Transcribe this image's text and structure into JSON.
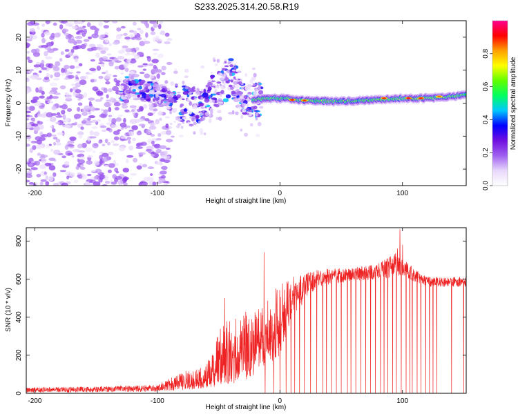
{
  "chart_data": [
    {
      "type": "heatmap",
      "title": "S233.2025.314.20.58.R19",
      "xlabel": "Height of straight line (km)",
      "ylabel": "Frequency (Hz)",
      "xlim": [
        -207,
        152
      ],
      "ylim": [
        -25,
        25
      ],
      "xticks": [
        -200,
        -100,
        0,
        100
      ],
      "yticks": [
        -20,
        -10,
        0,
        10,
        20
      ],
      "colorbar": {
        "label": "Normalized spectral amplitude",
        "range": [
          0,
          1
        ],
        "ticks": [
          0.0,
          0.2,
          0.4,
          0.6,
          0.8
        ],
        "colors": [
          "#ffffff",
          "#e8d8fb",
          "#a060f0",
          "#7010e0",
          "#0000ff",
          "#00c8ff",
          "#00ff60",
          "#60ff00",
          "#ffff00",
          "#ffa000",
          "#ff0000",
          "#ff0090"
        ]
      },
      "noise_region": {
        "x": [
          -207,
          -90
        ],
        "y": [
          -25,
          25
        ]
      },
      "ridge": [
        {
          "x": -125,
          "y": 5
        },
        {
          "x": -110,
          "y": 4
        },
        {
          "x": -100,
          "y": 3
        },
        {
          "x": -90,
          "y": 1
        },
        {
          "x": -80,
          "y": 0
        },
        {
          "x": -70,
          "y": -1
        },
        {
          "x": -60,
          "y": 2
        },
        {
          "x": -50,
          "y": 5
        },
        {
          "x": -40,
          "y": 8
        },
        {
          "x": -30,
          "y": 1
        },
        {
          "x": -20,
          "y": 1
        },
        {
          "x": -10,
          "y": 1.5
        },
        {
          "x": 0,
          "y": 1.5
        },
        {
          "x": 20,
          "y": 0.8
        },
        {
          "x": 50,
          "y": 0.5
        },
        {
          "x": 80,
          "y": 1
        },
        {
          "x": 100,
          "y": 1.5
        },
        {
          "x": 120,
          "y": 1.5
        },
        {
          "x": 152,
          "y": 2.5
        }
      ],
      "hot_spots": [
        {
          "x": 10,
          "y": 1,
          "value": 0.9
        },
        {
          "x": 20,
          "y": 0.8,
          "value": 0.88
        },
        {
          "x": 85,
          "y": 1.5,
          "value": 0.9
        },
        {
          "x": 105,
          "y": 1.5,
          "value": 0.92
        },
        {
          "x": 115,
          "y": 1.5,
          "value": 0.9
        },
        {
          "x": 130,
          "y": 2,
          "value": 0.85
        }
      ]
    },
    {
      "type": "line",
      "title": "",
      "xlabel": "Height of straight line (km)",
      "ylabel": "SNR (10 * v/v)",
      "xlim": [
        -207,
        152
      ],
      "ylim": [
        0,
        870
      ],
      "xticks": [
        -200,
        -100,
        0,
        100
      ],
      "yticks": [
        0,
        200,
        400,
        600,
        800
      ],
      "color": "#ee2222",
      "envelope": [
        {
          "x": -207,
          "low": 5,
          "high": 30
        },
        {
          "x": -150,
          "low": 5,
          "high": 35
        },
        {
          "x": -100,
          "low": 10,
          "high": 45
        },
        {
          "x": -80,
          "low": 15,
          "high": 110
        },
        {
          "x": -60,
          "low": 30,
          "high": 150
        },
        {
          "x": -45,
          "low": 40,
          "high": 400
        },
        {
          "x": -30,
          "low": 60,
          "high": 420
        },
        {
          "x": -15,
          "low": 120,
          "high": 480
        },
        {
          "x": 0,
          "low": 200,
          "high": 580
        },
        {
          "x": 10,
          "low": 400,
          "high": 610
        },
        {
          "x": 30,
          "low": 560,
          "high": 650
        },
        {
          "x": 60,
          "low": 590,
          "high": 660
        },
        {
          "x": 80,
          "low": 600,
          "high": 680
        },
        {
          "x": 95,
          "low": 610,
          "high": 740
        },
        {
          "x": 105,
          "low": 600,
          "high": 680
        },
        {
          "x": 120,
          "low": 560,
          "high": 610
        },
        {
          "x": 152,
          "low": 560,
          "high": 610
        }
      ],
      "spikes": [
        {
          "x": -45,
          "y": 500
        },
        {
          "x": -13,
          "y": 740
        },
        {
          "x": -12,
          "y": 460
        },
        {
          "x": 96,
          "y": 760
        },
        {
          "x": 98,
          "y": 860
        },
        {
          "x": 100,
          "y": 780
        }
      ],
      "dropouts": [
        -12,
        -5,
        0,
        5,
        9,
        12,
        16,
        20,
        25,
        30,
        35,
        38,
        42,
        46,
        50,
        55,
        58,
        62,
        66,
        70,
        74,
        78,
        82,
        85,
        88,
        92,
        95,
        99,
        103,
        106,
        108,
        112,
        115,
        119,
        122,
        125,
        128,
        140,
        150
      ]
    }
  ]
}
